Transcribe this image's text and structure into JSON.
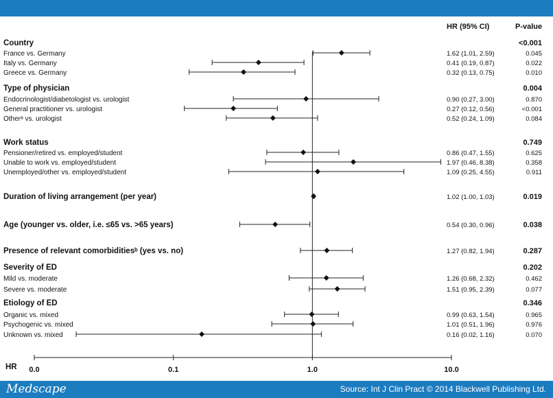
{
  "header": {
    "hr_ci": "HR (95% CI)",
    "pvalue": "P-value"
  },
  "footer": {
    "brand": "Medscape",
    "source": "Source: Int J Clin Pract © 2014 Blackwell Publishing Ltd."
  },
  "chart_data": {
    "type": "forest",
    "x_scale": "log",
    "xlim": [
      0.01,
      10
    ],
    "x_axis_label": "HR",
    "x_ticks": [
      {
        "value": 0.01,
        "label": "0.0"
      },
      {
        "value": 0.1,
        "label": "0.1"
      },
      {
        "value": 1,
        "label": "1.0"
      },
      {
        "value": 10,
        "label": "10.0"
      }
    ],
    "reference_line": 1,
    "rows": [
      {
        "kind": "header",
        "label": "Country",
        "p": "<0.001"
      },
      {
        "kind": "item",
        "label": "France vs. Germany",
        "hr": 1.62,
        "lo": 1.01,
        "hi": 2.59,
        "ci": "1.62 (1.01, 2.59)",
        "p": "0.045"
      },
      {
        "kind": "item",
        "label": "Italy vs. Germany",
        "hr": 0.41,
        "lo": 0.19,
        "hi": 0.87,
        "ci": "0.41 (0.19, 0.87)",
        "p": "0.022"
      },
      {
        "kind": "item",
        "label": "Greece vs. Germany",
        "hr": 0.32,
        "lo": 0.13,
        "hi": 0.75,
        "ci": "0.32 (0.13, 0.75)",
        "p": "0.010"
      },
      {
        "kind": "header",
        "label": "Type of physician",
        "p": "0.004"
      },
      {
        "kind": "item",
        "label": "Endocrinologist/diabetologist  vs. urologist",
        "hr": 0.9,
        "lo": 0.27,
        "hi": 3.0,
        "ci": "0.90 (0.27, 3.00)",
        "p": "0.870"
      },
      {
        "kind": "item",
        "label": "General practitioner  vs. urologist",
        "hr": 0.27,
        "lo": 0.12,
        "hi": 0.56,
        "ci": "0.27 (0.12, 0.56)",
        "p": "<0.001"
      },
      {
        "kind": "item",
        "label": "Otherᵃ vs. urologist",
        "hr": 0.52,
        "lo": 0.24,
        "hi": 1.09,
        "ci": "0.52 (0.24, 1.09)",
        "p": "0.084"
      },
      {
        "kind": "header",
        "label": "Work status",
        "p": "0.749"
      },
      {
        "kind": "item",
        "label": "Pensioner/retired vs. employed/student",
        "hr": 0.86,
        "lo": 0.47,
        "hi": 1.55,
        "ci": "0.86 (0.47, 1.55)",
        "p": "0.625"
      },
      {
        "kind": "item",
        "label": "Unable to work vs. employed/student",
        "hr": 1.97,
        "lo": 0.46,
        "hi": 8.38,
        "ci": "1.97 (0.46, 8.38)",
        "p": "0.358"
      },
      {
        "kind": "item",
        "label": "Unemployed/other vs. employed/student",
        "hr": 1.09,
        "lo": 0.25,
        "hi": 4.55,
        "ci": "1.09 (0.25, 4.55)",
        "p": "0.911"
      },
      {
        "kind": "header",
        "label": "Duration of living arrangement (per year)",
        "hr": 1.02,
        "lo": 1.0,
        "hi": 1.03,
        "ci": "1.02 (1.00, 1.03)",
        "p": "0.019"
      },
      {
        "kind": "header",
        "label": "Age (younger vs. older, i.e. ≤65 vs. >65 years)",
        "hr": 0.54,
        "lo": 0.3,
        "hi": 0.96,
        "ci": "0.54 (0.30, 0.96)",
        "p": "0.038"
      },
      {
        "kind": "header",
        "label": "Presence of relevant comorbiditiesᵇ (yes vs. no)",
        "hr": 1.27,
        "lo": 0.82,
        "hi": 1.94,
        "ci": "1.27 (0.82, 1.94)",
        "p": "0.287"
      },
      {
        "kind": "header",
        "label": "Severity of ED",
        "p": "0.202"
      },
      {
        "kind": "item",
        "label": "Mild vs. moderate",
        "hr": 1.26,
        "lo": 0.68,
        "hi": 2.32,
        "ci": "1.26 (0.68, 2.32)",
        "p": "0.462"
      },
      {
        "kind": "item",
        "label": "Severe vs. moderate",
        "hr": 1.51,
        "lo": 0.95,
        "hi": 2.39,
        "ci": "1.51 (0.95, 2.39)",
        "p": "0.077"
      },
      {
        "kind": "header",
        "label": "Etiology of ED",
        "p": "0.346"
      },
      {
        "kind": "item",
        "label": "Organic vs. mixed",
        "hr": 0.99,
        "lo": 0.63,
        "hi": 1.54,
        "ci": "0.99 (0.63, 1.54)",
        "p": "0.965"
      },
      {
        "kind": "item",
        "label": "Psychogenic vs. mixed",
        "hr": 1.01,
        "lo": 0.51,
        "hi": 1.96,
        "ci": "1.01 (0.51, 1.96)",
        "p": "0.976"
      },
      {
        "kind": "item",
        "label": "Unknown vs. mixed",
        "hr": 0.16,
        "lo": 0.02,
        "hi": 1.16,
        "ci": "0.16 (0.02, 1.16)",
        "p": "0.070"
      }
    ]
  }
}
